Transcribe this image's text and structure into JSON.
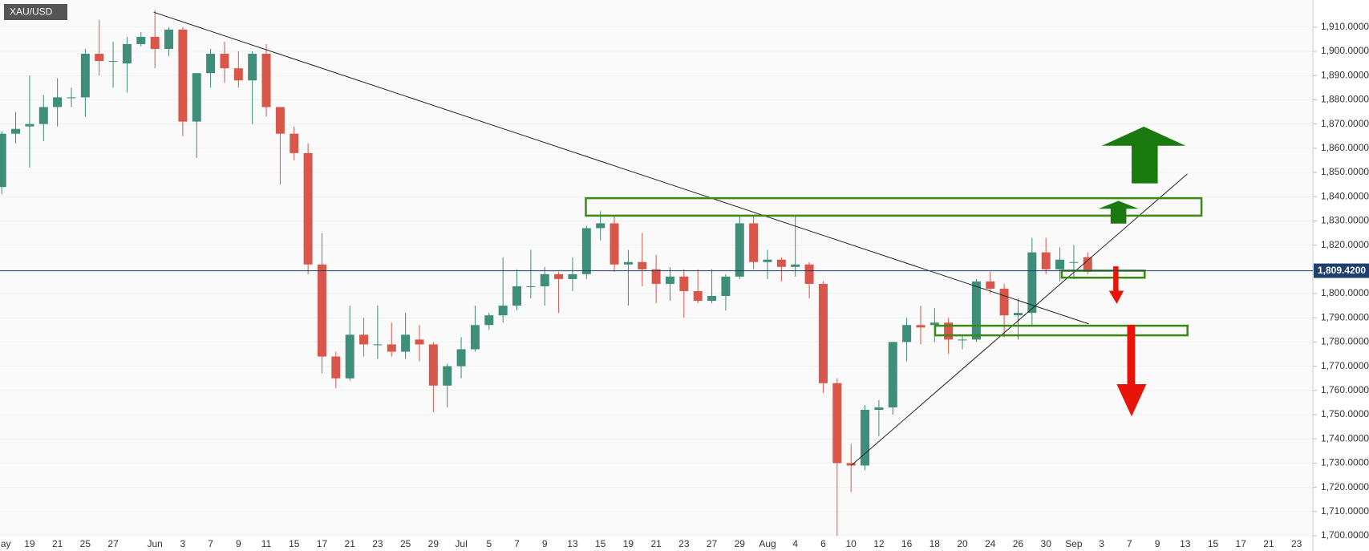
{
  "chart_data": {
    "type": "candlestick",
    "title": "XAU/USD",
    "categories": [
      "May",
      null,
      "19",
      null,
      "21",
      null,
      "25",
      null,
      "27",
      null,
      null,
      "Jun",
      null,
      "3",
      null,
      "7",
      null,
      "9",
      null,
      "11",
      null,
      "15",
      null,
      "17",
      null,
      "21",
      null,
      "23",
      null,
      "25",
      null,
      "29",
      null,
      "Jul",
      null,
      "5",
      null,
      "7",
      null,
      "9",
      null,
      "13",
      null,
      "15",
      null,
      "19",
      null,
      "21",
      null,
      "23",
      null,
      "27",
      null,
      "29",
      null,
      "Aug",
      null,
      "4",
      null,
      "6",
      null,
      "10",
      null,
      "12",
      null,
      "16",
      null,
      "18",
      null,
      "20",
      null,
      "24",
      null,
      "26",
      null,
      "30",
      null,
      "Sep",
      null,
      "3",
      null,
      "7",
      null,
      "9",
      null,
      "13",
      null,
      "15",
      null,
      "17",
      null,
      "21",
      null,
      "23"
    ],
    "open": [
      1844,
      1866,
      1869,
      1870,
      1877,
      1881,
      1881,
      1899,
      1896,
      1895,
      1903,
      1906,
      1901,
      1909,
      1871,
      1891,
      1899,
      1893,
      1888,
      1899,
      1877,
      1866,
      1858,
      1812,
      1774,
      1765,
      1783,
      1779,
      1779,
      1776,
      1781,
      1779,
      1762,
      1770,
      1777,
      1787,
      1791,
      1795,
      1803,
      1803,
      1808,
      1806,
      1808,
      1827,
      1829,
      1812,
      1813,
      1810,
      1804,
      1807,
      1801,
      1797,
      1799,
      1807,
      1829,
      1813,
      1814,
      1811,
      1812,
      1804,
      1763,
      1730,
      1729,
      1752,
      1753,
      1780,
      1787,
      1787,
      1788,
      1781,
      1781,
      1805,
      1802,
      1791,
      1792,
      1817,
      1810,
      1813,
      1815,
      null,
      null,
      null,
      null,
      null,
      null,
      null,
      null,
      null,
      null,
      null,
      null,
      null,
      null,
      null
    ],
    "high": [
      1867,
      1875,
      1890,
      1882,
      1889,
      1885,
      1901,
      1913,
      1904,
      1906,
      1908,
      1917,
      1910,
      1910,
      1891,
      1901,
      1904,
      1900,
      1900,
      1903,
      1877,
      1869,
      1862,
      1825,
      1776,
      1795,
      1790,
      1795,
      1788,
      1792,
      1787,
      1780,
      1771,
      1782,
      1795,
      1792,
      1815,
      1810,
      1818,
      1811,
      1809,
      1815,
      1828,
      1834,
      1832,
      1818,
      1825,
      1816,
      1811,
      1810,
      1810,
      1810,
      1808,
      1832,
      1832,
      1818,
      1815,
      1832,
      1813,
      1805,
      1765,
      1738,
      1754,
      1756,
      1780,
      1790,
      1795,
      1794,
      1790,
      1783,
      1806,
      1809,
      1804,
      1798,
      1823,
      1823,
      1819,
      1820,
      1817,
      null,
      null,
      null,
      null,
      null,
      null,
      null,
      null,
      null,
      null,
      null,
      null,
      null,
      null,
      null
    ],
    "low": [
      1841,
      1862,
      1852,
      1863,
      1869,
      1877,
      1873,
      1890,
      1885,
      1883,
      1902,
      1893,
      1898,
      1865,
      1856,
      1885,
      1887,
      1885,
      1870,
      1873,
      1845,
      1855,
      1808,
      1767,
      1761,
      1764,
      1774,
      1773,
      1774,
      1773,
      1772,
      1751,
      1753,
      1765,
      1776,
      1785,
      1788,
      1793,
      1798,
      1795,
      1792,
      1801,
      1806,
      1822,
      1809,
      1795,
      1803,
      1796,
      1797,
      1790,
      1796,
      1796,
      1793,
      1806,
      1810,
      1806,
      1805,
      1807,
      1798,
      1759,
      1690,
      1718,
      1727,
      1741,
      1750,
      1772,
      1779,
      1780,
      1775,
      1777,
      1780,
      1800,
      1782,
      1781,
      1787,
      1808,
      1805,
      1806,
      1808,
      null,
      null,
      null,
      null,
      null,
      null,
      null,
      null,
      null,
      null,
      null,
      null,
      null,
      null,
      null
    ],
    "close": [
      1866,
      1868,
      1870,
      1877,
      1881,
      1881,
      1899,
      1896,
      1896,
      1903,
      1906,
      1901,
      1909,
      1871,
      1891,
      1899,
      1893,
      1888,
      1899,
      1877,
      1866,
      1858,
      1812,
      1774,
      1765,
      1783,
      1779,
      1779,
      1776,
      1783,
      1779,
      1762,
      1770,
      1777,
      1787,
      1791,
      1795,
      1803,
      1803,
      1808,
      1806,
      1808,
      1827,
      1829,
      1812,
      1813,
      1810,
      1804,
      1807,
      1801,
      1797,
      1799,
      1807,
      1829,
      1813,
      1814,
      1811,
      1812,
      1804,
      1763,
      1730,
      1729,
      1752,
      1753,
      1780,
      1787,
      1786,
      1788,
      1781,
      1781,
      1805,
      1802,
      1791,
      1792,
      1817,
      1810,
      1814,
      1813,
      1809,
      null,
      null,
      null,
      null,
      null,
      null,
      null,
      null,
      null,
      null,
      null,
      null,
      null,
      null,
      null
    ],
    "up_color": "#3e8e7a",
    "down_color": "#d9574a",
    "last_price": {
      "value": 1809.42,
      "label": "1,809.4200"
    },
    "ylim": [
      1700,
      1921.2
    ],
    "yticks": [
      {
        "value": 1700,
        "label": "1,700.0000"
      },
      {
        "value": 1710,
        "label": "1,710.0000"
      },
      {
        "value": 1720,
        "label": "1,720.0000"
      },
      {
        "value": 1730,
        "label": "1,730.0000"
      },
      {
        "value": 1740,
        "label": "1,740.0000"
      },
      {
        "value": 1750,
        "label": "1,750.0000"
      },
      {
        "value": 1760,
        "label": "1,760.0000"
      },
      {
        "value": 1770,
        "label": "1,770.0000"
      },
      {
        "value": 1780,
        "label": "1,780.0000"
      },
      {
        "value": 1790,
        "label": "1,790.0000"
      },
      {
        "value": 1800,
        "label": "1,800.0000"
      },
      {
        "value": 1810,
        "label": "1,810.0000"
      },
      {
        "value": 1820,
        "label": "1,820.0000"
      },
      {
        "value": 1830,
        "label": "1,830.0000"
      },
      {
        "value": 1840,
        "label": "1,840.0000"
      },
      {
        "value": 1850,
        "label": "1,850.0000"
      },
      {
        "value": 1860,
        "label": "1,860.0000"
      },
      {
        "value": 1870,
        "label": "1,870.0000"
      },
      {
        "value": 1880,
        "label": "1,880.0000"
      },
      {
        "value": 1890,
        "label": "1,890.0000"
      },
      {
        "value": 1900,
        "label": "1,900.0000"
      },
      {
        "value": 1910,
        "label": "1,910.0000"
      }
    ],
    "grid": true
  }
}
